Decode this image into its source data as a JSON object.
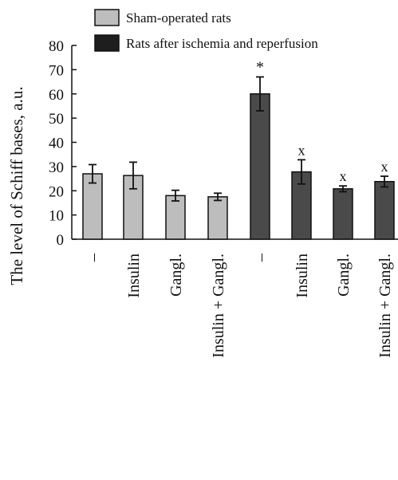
{
  "chart_data": {
    "type": "bar",
    "ylabel": "The level of Schiff bases, a.u.",
    "xlabel": "",
    "ylim": [
      0,
      80
    ],
    "yticks": [
      0,
      10,
      20,
      30,
      40,
      50,
      60,
      70,
      80
    ],
    "categories": [
      "–",
      "Insulin",
      "Gangl.",
      "Insulin + Gangl.",
      "–",
      "Insulin",
      "Gangl.",
      "Insulin + Gangl."
    ],
    "legend": {
      "placement": "top",
      "entries": [
        {
          "name": "Sham-operated rats",
          "color": "#bdbdbd"
        },
        {
          "name": "Rats after ischemia and reperfusion",
          "color": "#1e1e1e"
        }
      ]
    },
    "series": [
      {
        "name": "Sham-operated rats",
        "color": "#bdbdbd",
        "indices": [
          0,
          1,
          2,
          3
        ]
      },
      {
        "name": "Rats after ischemia and reperfusion",
        "color": "#4a4a4a",
        "indices": [
          4,
          5,
          6,
          7
        ]
      }
    ],
    "values": [
      27,
      26.3,
      18,
      17.5,
      60,
      27.8,
      20.8,
      23.8
    ],
    "errors": [
      3.8,
      5.5,
      2.2,
      1.5,
      7,
      5,
      1.2,
      2.2
    ],
    "annotations": [
      "",
      "",
      "",
      "",
      "*",
      "x",
      "x",
      "x"
    ]
  }
}
